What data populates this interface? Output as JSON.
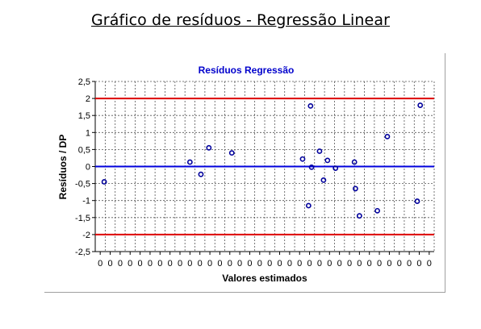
{
  "page": {
    "title": "Gráfico de resíduos - Regressão Linear"
  },
  "chart_data": {
    "type": "scatter",
    "title": "Resíduos Regressão",
    "xlabel": "Valores estimados",
    "ylabel": "Resíduos / DP",
    "ylim": [
      -2.5,
      2.5
    ],
    "y_ticks": [
      "2,5",
      "2",
      "1,5",
      "1",
      "0,5",
      "0",
      "-0,5",
      "-1",
      "-1,5",
      "-2",
      "-2,5"
    ],
    "x_tick_labels": [
      "0",
      "0",
      "0",
      "0",
      "0",
      "0",
      "0",
      "0",
      "0",
      "0",
      "0",
      "0",
      "0",
      "0",
      "0",
      "0",
      "0",
      "0",
      "0",
      "0",
      "0",
      "0",
      "0",
      "0",
      "0",
      "0",
      "0",
      "0",
      "0",
      "0",
      "0",
      "0",
      "0",
      "0"
    ],
    "grid": true,
    "reference_lines": [
      {
        "y": 2,
        "color": "#dd0000"
      },
      {
        "y": 0,
        "color": "#0000dd"
      },
      {
        "y": -2,
        "color": "#dd0000"
      }
    ],
    "marker_color": "#00009c",
    "points": [
      {
        "x": 0.9,
        "y": -0.45
      },
      {
        "x": 9.5,
        "y": 0.13
      },
      {
        "x": 10.6,
        "y": -0.23
      },
      {
        "x": 11.4,
        "y": 0.55
      },
      {
        "x": 13.7,
        "y": 0.4
      },
      {
        "x": 20.8,
        "y": 0.22
      },
      {
        "x": 21.4,
        "y": -1.15
      },
      {
        "x": 21.6,
        "y": 1.78
      },
      {
        "x": 21.7,
        "y": -0.02
      },
      {
        "x": 22.5,
        "y": 0.45
      },
      {
        "x": 22.9,
        "y": -0.4
      },
      {
        "x": 23.3,
        "y": 0.18
      },
      {
        "x": 24.1,
        "y": -0.05
      },
      {
        "x": 26.0,
        "y": 0.13
      },
      {
        "x": 26.1,
        "y": -0.65
      },
      {
        "x": 26.5,
        "y": -1.45
      },
      {
        "x": 28.3,
        "y": -1.3
      },
      {
        "x": 29.3,
        "y": 0.88
      },
      {
        "x": 32.3,
        "y": -1.02
      },
      {
        "x": 32.6,
        "y": 1.8
      }
    ]
  }
}
